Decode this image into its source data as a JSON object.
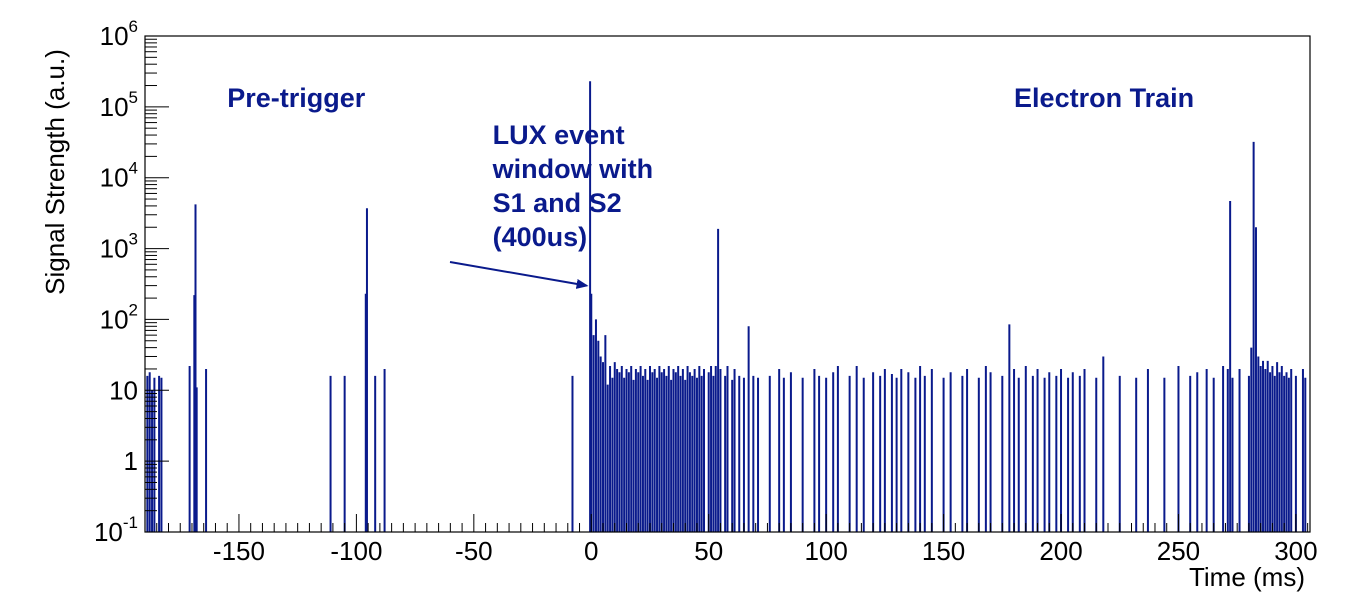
{
  "chart_data": {
    "type": "bar",
    "title": "",
    "xlabel": "Time (ms)",
    "ylabel": "Signal Strength (a.u.)",
    "xlim": [
      -190,
      306
    ],
    "ylim": [
      0.1,
      1000000
    ],
    "yscale": "log",
    "grid": false,
    "legend": "none",
    "color": "#0a1a8c",
    "x_ticks": [
      -150,
      -100,
      -50,
      0,
      50,
      100,
      150,
      200,
      250,
      300
    ],
    "x_tick_labels": [
      "-150",
      "-100",
      "-50",
      "0",
      "50",
      "100",
      "150",
      "200",
      "250",
      "300"
    ],
    "y_tick_labels": [
      {
        "value": 0.1,
        "base": "10",
        "exp": "-1"
      },
      {
        "value": 1,
        "base": "1",
        "exp": ""
      },
      {
        "value": 10,
        "base": "10",
        "exp": ""
      },
      {
        "value": 100,
        "base": "10",
        "exp": "2"
      },
      {
        "value": 1000,
        "base": "10",
        "exp": "3"
      },
      {
        "value": 10000,
        "base": "10",
        "exp": "4"
      },
      {
        "value": 100000,
        "base": "10",
        "exp": "5"
      },
      {
        "value": 1000000,
        "base": "10",
        "exp": "6"
      }
    ],
    "annotations": [
      {
        "id": "pretrigger",
        "lines": [
          "Pre-trigger"
        ],
        "x": -155,
        "y": 100000
      },
      {
        "id": "electron-train",
        "lines": [
          "Electron Train"
        ],
        "x": 180,
        "y": 100000
      },
      {
        "id": "lux-window",
        "lines": [
          "LUX event",
          "window with",
          "S1 and S2",
          "(400us)"
        ],
        "x": -42,
        "y": 30000,
        "arrow_to": {
          "x": -2,
          "y": 300
        }
      }
    ],
    "peaks": [
      {
        "x": -189,
        "y": 16
      },
      {
        "x": -188,
        "y": 18
      },
      {
        "x": -187,
        "y": 10
      },
      {
        "x": -186,
        "y": 15
      },
      {
        "x": -184,
        "y": 16
      },
      {
        "x": -183,
        "y": 15
      },
      {
        "x": -171,
        "y": 22
      },
      {
        "x": -169,
        "y": 220
      },
      {
        "x": -168.5,
        "y": 4200
      },
      {
        "x": -168,
        "y": 11
      },
      {
        "x": -164,
        "y": 20
      },
      {
        "x": -111,
        "y": 16
      },
      {
        "x": -105,
        "y": 16
      },
      {
        "x": -96,
        "y": 230
      },
      {
        "x": -95.5,
        "y": 3700
      },
      {
        "x": -92,
        "y": 16
      },
      {
        "x": -88,
        "y": 20
      },
      {
        "x": -8,
        "y": 16
      },
      {
        "x": -0.5,
        "y": 230000
      },
      {
        "x": 0,
        "y": 230
      },
      {
        "x": 1,
        "y": 60
      },
      {
        "x": 2,
        "y": 100
      },
      {
        "x": 3,
        "y": 50
      },
      {
        "x": 4,
        "y": 30
      },
      {
        "x": 5,
        "y": 25
      },
      {
        "x": 6,
        "y": 60
      },
      {
        "x": 7,
        "y": 12
      },
      {
        "x": 8,
        "y": 22
      },
      {
        "x": 9,
        "y": 15
      },
      {
        "x": 10,
        "y": 25
      },
      {
        "x": 11,
        "y": 20
      },
      {
        "x": 12,
        "y": 18
      },
      {
        "x": 13,
        "y": 22
      },
      {
        "x": 14,
        "y": 15
      },
      {
        "x": 15,
        "y": 20
      },
      {
        "x": 16,
        "y": 18
      },
      {
        "x": 17,
        "y": 22
      },
      {
        "x": 18,
        "y": 14
      },
      {
        "x": 19,
        "y": 20
      },
      {
        "x": 20,
        "y": 18
      },
      {
        "x": 21,
        "y": 22
      },
      {
        "x": 22,
        "y": 16
      },
      {
        "x": 23,
        "y": 20
      },
      {
        "x": 24,
        "y": 14
      },
      {
        "x": 25,
        "y": 22
      },
      {
        "x": 26,
        "y": 18
      },
      {
        "x": 27,
        "y": 20
      },
      {
        "x": 28,
        "y": 15
      },
      {
        "x": 29,
        "y": 22
      },
      {
        "x": 30,
        "y": 18
      },
      {
        "x": 31,
        "y": 20
      },
      {
        "x": 32,
        "y": 16
      },
      {
        "x": 33,
        "y": 22
      },
      {
        "x": 34,
        "y": 14
      },
      {
        "x": 35,
        "y": 20
      },
      {
        "x": 36,
        "y": 18
      },
      {
        "x": 37,
        "y": 22
      },
      {
        "x": 38,
        "y": 16
      },
      {
        "x": 39,
        "y": 20
      },
      {
        "x": 40,
        "y": 14
      },
      {
        "x": 41,
        "y": 22
      },
      {
        "x": 42,
        "y": 18
      },
      {
        "x": 43,
        "y": 16
      },
      {
        "x": 44,
        "y": 20
      },
      {
        "x": 45,
        "y": 15
      },
      {
        "x": 46,
        "y": 22
      },
      {
        "x": 47,
        "y": 16
      },
      {
        "x": 48,
        "y": 20
      },
      {
        "x": 50,
        "y": 18
      },
      {
        "x": 51,
        "y": 22
      },
      {
        "x": 52,
        "y": 16
      },
      {
        "x": 53,
        "y": 22
      },
      {
        "x": 54,
        "y": 1900
      },
      {
        "x": 55,
        "y": 20
      },
      {
        "x": 57,
        "y": 16
      },
      {
        "x": 58,
        "y": 22
      },
      {
        "x": 60,
        "y": 14
      },
      {
        "x": 61,
        "y": 20
      },
      {
        "x": 63,
        "y": 16
      },
      {
        "x": 65,
        "y": 15
      },
      {
        "x": 67,
        "y": 80
      },
      {
        "x": 69,
        "y": 16
      },
      {
        "x": 71,
        "y": 15
      },
      {
        "x": 76,
        "y": 16
      },
      {
        "x": 80,
        "y": 20
      },
      {
        "x": 82,
        "y": 15
      },
      {
        "x": 85,
        "y": 18
      },
      {
        "x": 90,
        "y": 15
      },
      {
        "x": 95,
        "y": 20
      },
      {
        "x": 97,
        "y": 16
      },
      {
        "x": 100,
        "y": 15
      },
      {
        "x": 103,
        "y": 18
      },
      {
        "x": 105,
        "y": 22
      },
      {
        "x": 110,
        "y": 16
      },
      {
        "x": 113,
        "y": 22
      },
      {
        "x": 116,
        "y": 15
      },
      {
        "x": 120,
        "y": 18
      },
      {
        "x": 123,
        "y": 16
      },
      {
        "x": 125,
        "y": 20
      },
      {
        "x": 128,
        "y": 17
      },
      {
        "x": 130,
        "y": 15
      },
      {
        "x": 132,
        "y": 20
      },
      {
        "x": 135,
        "y": 18
      },
      {
        "x": 138,
        "y": 15
      },
      {
        "x": 140,
        "y": 22
      },
      {
        "x": 142,
        "y": 16
      },
      {
        "x": 145,
        "y": 20
      },
      {
        "x": 150,
        "y": 15
      },
      {
        "x": 153,
        "y": 18
      },
      {
        "x": 158,
        "y": 16
      },
      {
        "x": 160,
        "y": 20
      },
      {
        "x": 165,
        "y": 15
      },
      {
        "x": 168,
        "y": 22
      },
      {
        "x": 170,
        "y": 18
      },
      {
        "x": 175,
        "y": 16
      },
      {
        "x": 178,
        "y": 85
      },
      {
        "x": 180,
        "y": 20
      },
      {
        "x": 182,
        "y": 15
      },
      {
        "x": 185,
        "y": 22
      },
      {
        "x": 188,
        "y": 16
      },
      {
        "x": 190,
        "y": 20
      },
      {
        "x": 193,
        "y": 15
      },
      {
        "x": 195,
        "y": 18
      },
      {
        "x": 198,
        "y": 16
      },
      {
        "x": 200,
        "y": 20
      },
      {
        "x": 203,
        "y": 15
      },
      {
        "x": 205,
        "y": 18
      },
      {
        "x": 208,
        "y": 16
      },
      {
        "x": 210,
        "y": 20
      },
      {
        "x": 215,
        "y": 15
      },
      {
        "x": 218,
        "y": 30
      },
      {
        "x": 225,
        "y": 16
      },
      {
        "x": 232,
        "y": 15
      },
      {
        "x": 237,
        "y": 20
      },
      {
        "x": 244,
        "y": 15
      },
      {
        "x": 250,
        "y": 22
      },
      {
        "x": 255,
        "y": 16
      },
      {
        "x": 258,
        "y": 18
      },
      {
        "x": 262,
        "y": 20
      },
      {
        "x": 265,
        "y": 15
      },
      {
        "x": 269,
        "y": 22
      },
      {
        "x": 271,
        "y": 20
      },
      {
        "x": 272,
        "y": 4700
      },
      {
        "x": 273,
        "y": 15
      },
      {
        "x": 276,
        "y": 20
      },
      {
        "x": 280,
        "y": 16
      },
      {
        "x": 281,
        "y": 40
      },
      {
        "x": 282,
        "y": 32000
      },
      {
        "x": 283,
        "y": 2000
      },
      {
        "x": 284,
        "y": 30
      },
      {
        "x": 285,
        "y": 22
      },
      {
        "x": 286,
        "y": 26
      },
      {
        "x": 287,
        "y": 20
      },
      {
        "x": 288,
        "y": 26
      },
      {
        "x": 289,
        "y": 18
      },
      {
        "x": 290,
        "y": 22
      },
      {
        "x": 291,
        "y": 16
      },
      {
        "x": 292,
        "y": 25
      },
      {
        "x": 293,
        "y": 18
      },
      {
        "x": 294,
        "y": 22
      },
      {
        "x": 295,
        "y": 16
      },
      {
        "x": 296,
        "y": 18
      },
      {
        "x": 297,
        "y": 15
      },
      {
        "x": 298,
        "y": 20
      },
      {
        "x": 300,
        "y": 16
      },
      {
        "x": 303,
        "y": 20
      },
      {
        "x": 304,
        "y": 15
      }
    ]
  }
}
